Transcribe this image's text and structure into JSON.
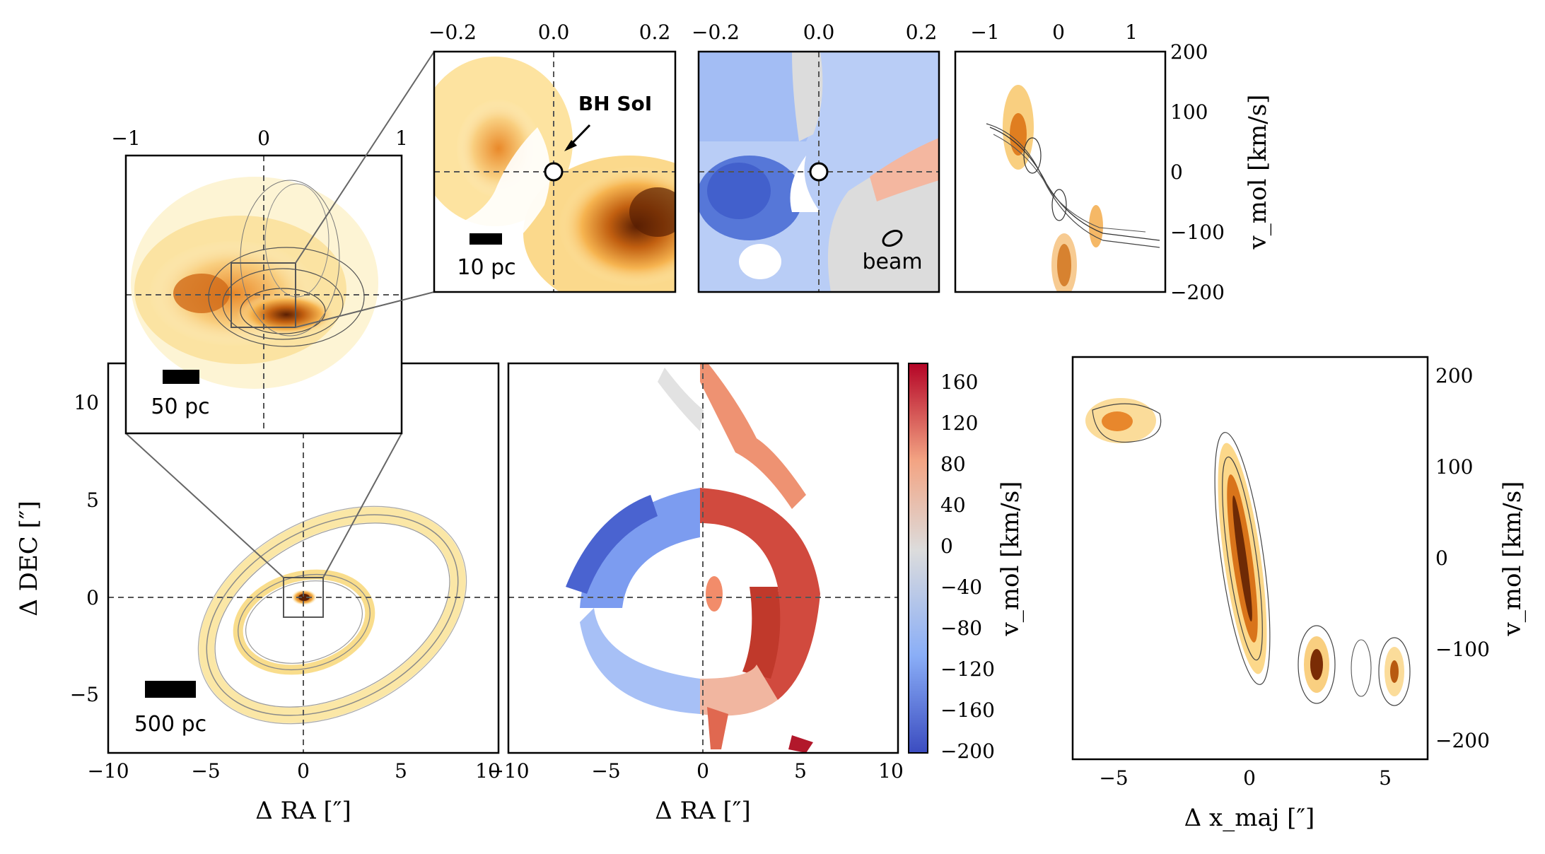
{
  "figure": {
    "colors": {
      "heat_light": "#fdf3c4",
      "heat_mid": "#f5a53c",
      "heat_dark": "#6e2a05",
      "vel_neg": "#3b52c8",
      "vel_zero": "#dcdcdc",
      "vel_pos": "#b2182b",
      "contour": "#555555"
    }
  },
  "chart_data": [
    {
      "id": "main-intensity",
      "type": "heatmap",
      "xlabel": "Δ RA [″]",
      "ylabel": "Δ DEC [″]",
      "xlim": [
        -10,
        10
      ],
      "ylim": [
        -8,
        12
      ],
      "xticks": [
        "−10",
        "−5",
        "0",
        "5",
        "10"
      ],
      "yticks": [
        "−5",
        "0",
        "5",
        "10"
      ],
      "scalebar": "500 pc",
      "grid": false
    },
    {
      "id": "main-velocity",
      "type": "heatmap",
      "xlabel": "Δ RA [″]",
      "xlim": [
        -10,
        10
      ],
      "ylim": [
        -8,
        12
      ],
      "xticks": [
        "−10",
        "−5",
        "0",
        "5",
        "10"
      ],
      "colorbar": {
        "label": "v_mol [km/s]",
        "ticks": [
          "160",
          "120",
          "80",
          "40",
          "0",
          "−40",
          "−80",
          "−120",
          "−160",
          "−200"
        ],
        "range": [
          -200,
          180
        ]
      }
    },
    {
      "id": "inset-zoom",
      "type": "heatmap",
      "xticks": [
        "−1",
        "0",
        "1"
      ],
      "xlim": [
        -1,
        1
      ],
      "scalebar": "50 pc"
    },
    {
      "id": "nucleus-intensity",
      "type": "heatmap",
      "xticks": [
        "−0.2",
        "0.0",
        "0.2"
      ],
      "xlim": [
        -0.22,
        0.22
      ],
      "annotation": "BH SoI",
      "scalebar": "10 pc"
    },
    {
      "id": "nucleus-velocity",
      "type": "heatmap",
      "xticks": [
        "−0.2",
        "0.0",
        "0.2"
      ],
      "xlim": [
        -0.22,
        0.22
      ],
      "annotation": "beam"
    },
    {
      "id": "pv-nucleus",
      "type": "heatmap",
      "xticks": [
        "−1",
        "0",
        "1"
      ],
      "xlim": [
        -1.4,
        1.4
      ],
      "ylabel": "v_mol [km/s]",
      "yticks": [
        "200",
        "100",
        "0",
        "−100",
        "−200"
      ],
      "ylim": [
        -200,
        200
      ]
    },
    {
      "id": "pv-major",
      "type": "heatmap",
      "xlabel": "Δ x_maj [″]",
      "xticks": [
        "−5",
        "0",
        "5"
      ],
      "xlim": [
        -6.4,
        6.4
      ],
      "ylabel": "v_mol [km/s]",
      "yticks": [
        "200",
        "100",
        "0",
        "−100",
        "−200"
      ],
      "ylim": [
        -220,
        220
      ]
    }
  ]
}
